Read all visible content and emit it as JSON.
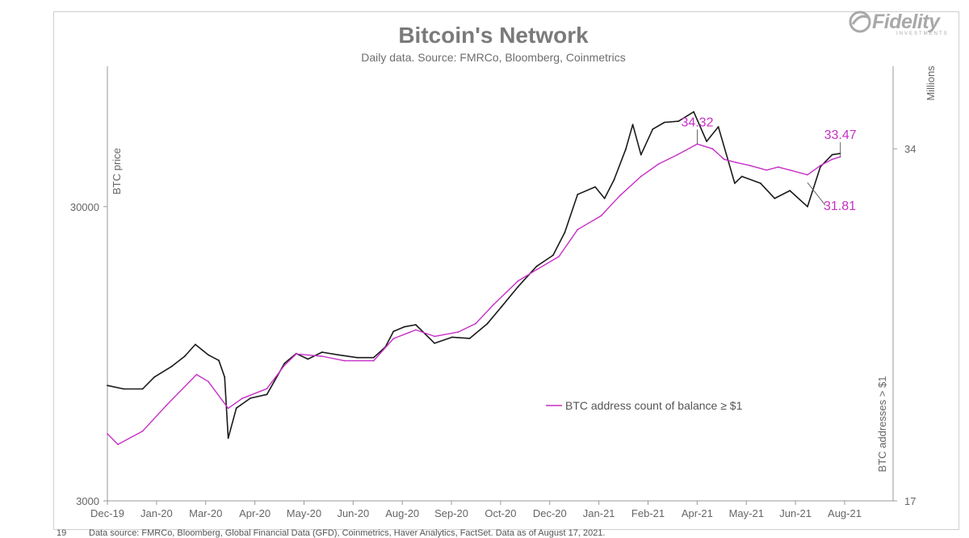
{
  "brand": {
    "name": "Fidelity",
    "sub": "INVESTMENTS",
    "color": "#a9a9a9"
  },
  "page_number": "19",
  "footer_source": "Data source: FMRCo, Bloomberg, Global Financial Data (GFD), Coinmetrics, Haver Analytics, FactSet. Data as of August 17, 2021.",
  "chart_data": {
    "type": "line",
    "title": "Bitcoin's Network",
    "subtitle": "Daily data.  Source: FMRCo, Bloomberg, Coinmetrics",
    "x_tick_labels": [
      "Dec-19",
      "Jan-20",
      "Mar-20",
      "Apr-20",
      "May-20",
      "Jun-20",
      "Aug-20",
      "Sep-20",
      "Oct-20",
      "Dec-20",
      "Jan-21",
      "Feb-21",
      "Apr-21",
      "May-21",
      "Jun-21",
      "Aug-21"
    ],
    "y_left": {
      "label": "BTC price",
      "scale": "log",
      "ylim": [
        3000,
        90000
      ],
      "tick_labels": [
        "3000",
        "30000"
      ],
      "tick_values": [
        3000,
        30000
      ]
    },
    "y_right": {
      "label": "BTC addresses > $1",
      "units": "Millions",
      "scale": "log",
      "ylim": [
        17,
        40
      ],
      "tick_labels": [
        "17",
        "34"
      ],
      "tick_values": [
        17,
        34
      ]
    },
    "legend": {
      "placement": "center-right",
      "entries": [
        "BTC address count of balance ≥ $1"
      ]
    },
    "series": [
      {
        "name": "BTC price",
        "axis": "left",
        "color": "#1a1a1a",
        "points": [
          [
            "2019-12-01",
            7400
          ],
          [
            "2019-12-15",
            7200
          ],
          [
            "2019-12-31",
            7200
          ],
          [
            "2020-01-10",
            7900
          ],
          [
            "2020-01-25",
            8600
          ],
          [
            "2020-02-05",
            9300
          ],
          [
            "2020-02-14",
            10200
          ],
          [
            "2020-02-25",
            9400
          ],
          [
            "2020-03-05",
            9000
          ],
          [
            "2020-03-10",
            7900
          ],
          [
            "2020-03-13",
            4900
          ],
          [
            "2020-03-20",
            6200
          ],
          [
            "2020-04-01",
            6700
          ],
          [
            "2020-04-15",
            6900
          ],
          [
            "2020-04-30",
            8800
          ],
          [
            "2020-05-10",
            9500
          ],
          [
            "2020-05-20",
            9100
          ],
          [
            "2020-06-01",
            9600
          ],
          [
            "2020-06-15",
            9400
          ],
          [
            "2020-07-01",
            9200
          ],
          [
            "2020-07-15",
            9200
          ],
          [
            "2020-07-25",
            10000
          ],
          [
            "2020-08-01",
            11300
          ],
          [
            "2020-08-10",
            11700
          ],
          [
            "2020-08-20",
            11900
          ],
          [
            "2020-09-05",
            10300
          ],
          [
            "2020-09-20",
            10800
          ],
          [
            "2020-10-05",
            10700
          ],
          [
            "2020-10-20",
            12000
          ],
          [
            "2020-11-01",
            13700
          ],
          [
            "2020-11-15",
            16000
          ],
          [
            "2020-12-01",
            18800
          ],
          [
            "2020-12-15",
            20500
          ],
          [
            "2020-12-25",
            24500
          ],
          [
            "2021-01-05",
            33000
          ],
          [
            "2021-01-20",
            35000
          ],
          [
            "2021-01-28",
            32000
          ],
          [
            "2021-02-05",
            37000
          ],
          [
            "2021-02-15",
            47000
          ],
          [
            "2021-02-21",
            57000
          ],
          [
            "2021-02-28",
            45000
          ],
          [
            "2021-03-10",
            55000
          ],
          [
            "2021-03-20",
            58000
          ],
          [
            "2021-04-01",
            58500
          ],
          [
            "2021-04-14",
            63000
          ],
          [
            "2021-04-25",
            50000
          ],
          [
            "2021-05-05",
            56000
          ],
          [
            "2021-05-19",
            36000
          ],
          [
            "2021-05-25",
            38000
          ],
          [
            "2021-06-10",
            36000
          ],
          [
            "2021-06-22",
            32000
          ],
          [
            "2021-07-05",
            34000
          ],
          [
            "2021-07-20",
            30000
          ],
          [
            "2021-07-31",
            41000
          ],
          [
            "2021-08-10",
            45000
          ],
          [
            "2021-08-17",
            45500
          ]
        ]
      },
      {
        "name": "BTC address count of balance ≥ $1",
        "axis": "right",
        "color": "#c72fc7",
        "points": [
          [
            "2019-12-01",
            19.4
          ],
          [
            "2019-12-10",
            19.0
          ],
          [
            "2019-12-31",
            19.5
          ],
          [
            "2020-01-20",
            20.5
          ],
          [
            "2020-02-15",
            21.8
          ],
          [
            "2020-02-25",
            21.5
          ],
          [
            "2020-03-13",
            20.4
          ],
          [
            "2020-03-25",
            20.8
          ],
          [
            "2020-04-15",
            21.2
          ],
          [
            "2020-04-30",
            22.2
          ],
          [
            "2020-05-10",
            22.7
          ],
          [
            "2020-06-01",
            22.6
          ],
          [
            "2020-06-20",
            22.4
          ],
          [
            "2020-07-15",
            22.4
          ],
          [
            "2020-08-01",
            23.4
          ],
          [
            "2020-08-20",
            23.8
          ],
          [
            "2020-09-05",
            23.5
          ],
          [
            "2020-09-25",
            23.7
          ],
          [
            "2020-10-10",
            24.1
          ],
          [
            "2020-10-25",
            25.0
          ],
          [
            "2020-11-15",
            26.2
          ],
          [
            "2020-12-01",
            26.8
          ],
          [
            "2020-12-20",
            27.5
          ],
          [
            "2021-01-05",
            29.0
          ],
          [
            "2021-01-25",
            29.8
          ],
          [
            "2021-02-10",
            31.0
          ],
          [
            "2021-02-28",
            32.2
          ],
          [
            "2021-03-15",
            33.0
          ],
          [
            "2021-03-31",
            33.6
          ],
          [
            "2021-04-17",
            34.32
          ],
          [
            "2021-04-30",
            34.0
          ],
          [
            "2021-05-10",
            33.3
          ],
          [
            "2021-05-20",
            33.1
          ],
          [
            "2021-06-01",
            32.9
          ],
          [
            "2021-06-15",
            32.6
          ],
          [
            "2021-06-25",
            32.8
          ],
          [
            "2021-07-05",
            32.6
          ],
          [
            "2021-07-20",
            32.3
          ],
          [
            "2021-07-31",
            32.9
          ],
          [
            "2021-08-10",
            33.3
          ],
          [
            "2021-08-17",
            33.47
          ]
        ]
      }
    ],
    "annotations": [
      {
        "text": "34.32",
        "date": "2021-04-17",
        "value": 34.32,
        "axis": "right",
        "color": "#c72fc7",
        "anchor": "above"
      },
      {
        "text": "33.47",
        "date": "2021-08-17",
        "value": 33.47,
        "axis": "right",
        "color": "#c72fc7",
        "anchor": "above"
      },
      {
        "text": "31.81",
        "date": "2021-07-20",
        "value": 31.81,
        "axis": "right",
        "color": "#c72fc7",
        "anchor": "below-right"
      }
    ]
  }
}
